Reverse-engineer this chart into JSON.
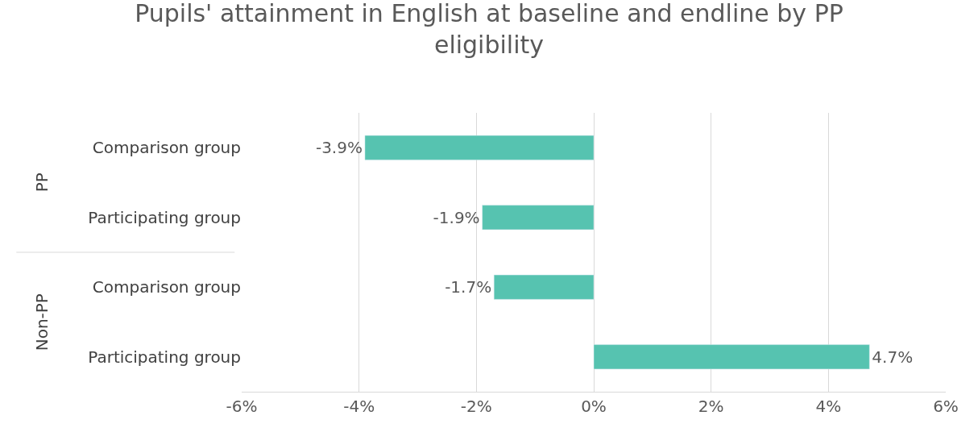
{
  "chart_data": {
    "type": "bar",
    "orientation": "horizontal",
    "title": "Pupils' attainment in English at baseline and endline by PP eligibility",
    "categories": [
      "Comparison group",
      "Participating group",
      "Comparison group",
      "Participating group"
    ],
    "values": [
      -3.9,
      -1.9,
      -1.7,
      4.7
    ],
    "value_labels": [
      "-3.9%",
      "-1.9%",
      "-1.7%",
      "4.7%"
    ],
    "color": "#56c3b0",
    "xlim": [
      -6,
      6
    ],
    "xticks": [
      {
        "value": -6,
        "label": "-6%"
      },
      {
        "value": -4,
        "label": "-4%"
      },
      {
        "value": -2,
        "label": "-2%"
      },
      {
        "value": 0,
        "label": "0%"
      },
      {
        "value": 2,
        "label": "2%"
      },
      {
        "value": 4,
        "label": "4%"
      },
      {
        "value": 6,
        "label": "6%"
      }
    ],
    "grid": "x",
    "annotations": [
      "PP",
      "Non-PP"
    ]
  }
}
